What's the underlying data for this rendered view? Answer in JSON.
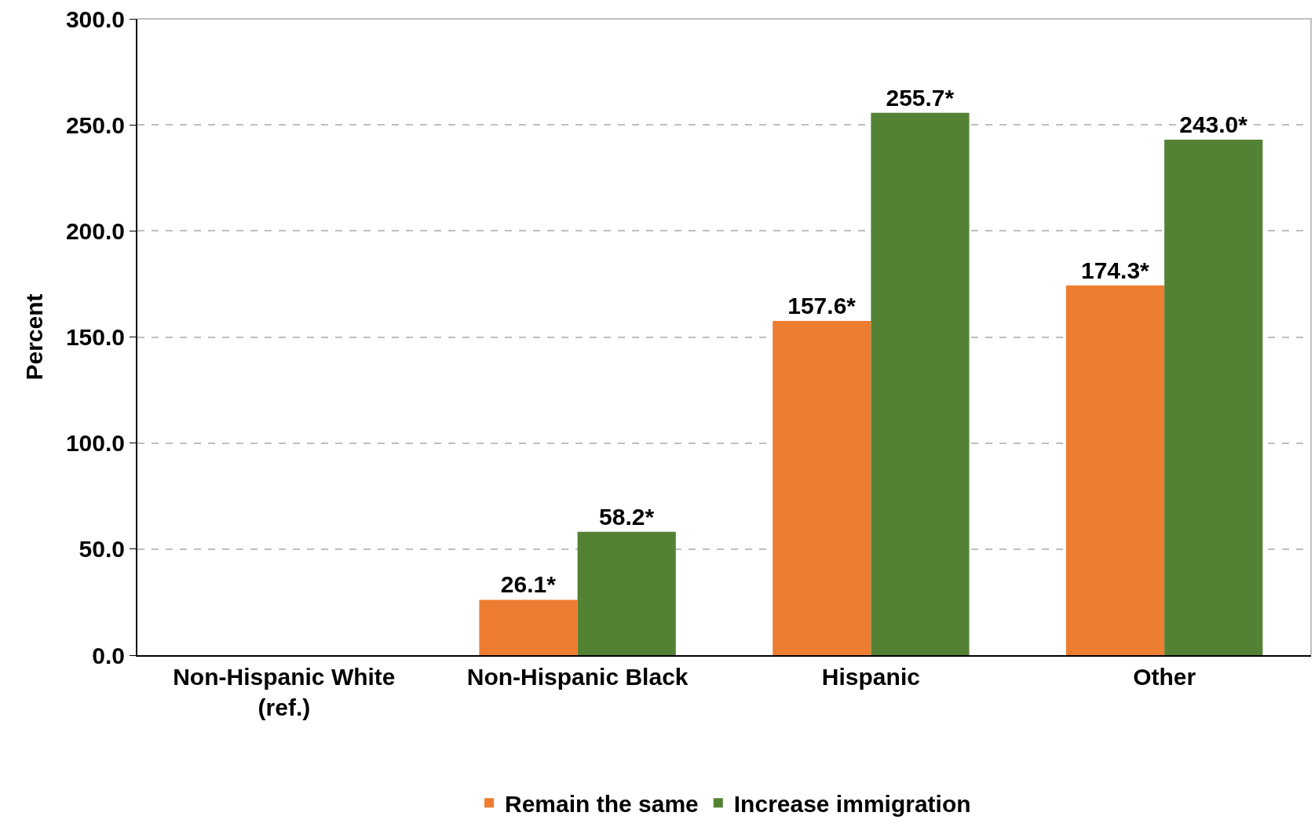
{
  "chart_data": {
    "type": "bar",
    "ylabel": "Percent",
    "categories": [
      "Non-Hispanic White\n(ref.)",
      "Non-Hispanic Black",
      "Hispanic",
      "Other"
    ],
    "series": [
      {
        "name": "Remain the same",
        "color": "#ed7d31",
        "values": [
          null,
          26.1,
          157.6,
          174.3
        ],
        "value_labels": [
          null,
          "26.1*",
          "157.6*",
          "174.3*"
        ]
      },
      {
        "name": "Increase immigration",
        "color": "#548235",
        "values": [
          null,
          58.2,
          255.7,
          243.0
        ],
        "value_labels": [
          null,
          "58.2*",
          "255.7*",
          "243.0*"
        ]
      }
    ],
    "ylim": [
      0,
      300
    ],
    "yticks": [
      {
        "value": 0,
        "label": "0.0"
      },
      {
        "value": 50,
        "label": "50.0"
      },
      {
        "value": 100,
        "label": "100.0"
      },
      {
        "value": 150,
        "label": "150.0"
      },
      {
        "value": 200,
        "label": "200.0"
      },
      {
        "value": 250,
        "label": "250.0"
      },
      {
        "value": 300,
        "label": "300.0"
      }
    ],
    "grid": "y",
    "legend": "bottom"
  }
}
